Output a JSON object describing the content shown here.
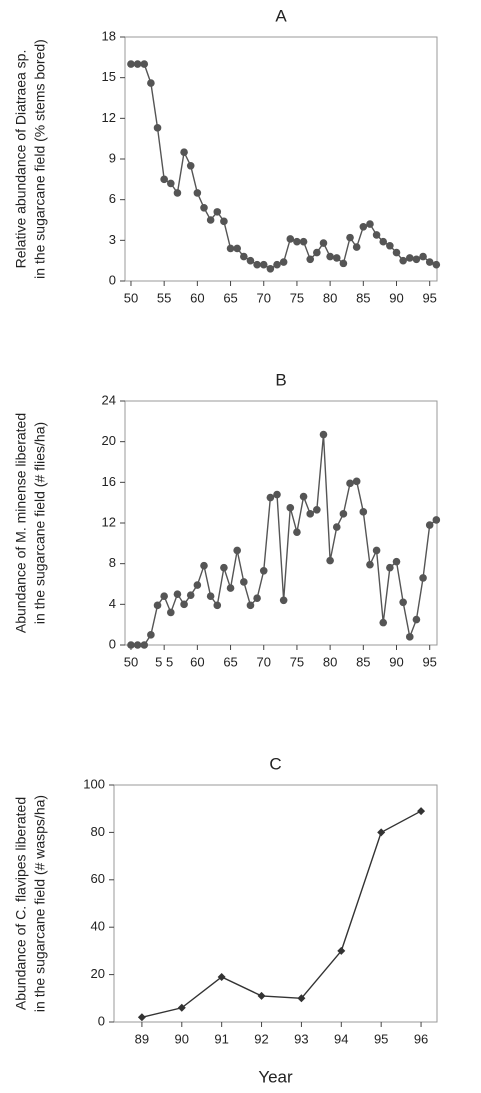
{
  "chart_data": [
    {
      "type": "line",
      "title": "A",
      "ylabel": [
        "Relative abundance of Diatraea sp.",
        "in the sugarcane field (% stems bored)"
      ],
      "x": [
        50,
        51,
        52,
        53,
        54,
        55,
        56,
        57,
        58,
        59,
        60,
        61,
        62,
        63,
        64,
        65,
        66,
        67,
        68,
        69,
        70,
        71,
        72,
        73,
        74,
        75,
        76,
        77,
        78,
        79,
        80,
        81,
        82,
        83,
        84,
        85,
        86,
        87,
        88,
        89,
        90,
        91,
        92,
        93,
        94,
        95,
        96
      ],
      "values": [
        16,
        16,
        16,
        14.6,
        11.3,
        7.5,
        7.2,
        6.5,
        9.5,
        8.5,
        6.5,
        5.4,
        4.5,
        5.1,
        4.4,
        2.4,
        2.4,
        1.8,
        1.5,
        1.2,
        1.2,
        0.9,
        1.2,
        1.4,
        3.1,
        2.9,
        2.9,
        1.6,
        2.1,
        2.8,
        1.8,
        1.7,
        1.3,
        3.2,
        2.5,
        4.0,
        4.2,
        3.4,
        2.9,
        2.6,
        2.1,
        1.5,
        1.7,
        1.6,
        1.8,
        1.4,
        1.2
      ],
      "color": "#555555",
      "marker": "circle",
      "xlim": [
        49.1,
        96.1
      ],
      "xticks": [
        50,
        55,
        60,
        65,
        70,
        75,
        80,
        85,
        90,
        95
      ],
      "ylim": [
        0,
        18
      ],
      "yticks": [
        0,
        3,
        6,
        9,
        12,
        15,
        18
      ]
    },
    {
      "type": "line",
      "title": "B",
      "ylabel": [
        "Abundance of M. minense liberated",
        "in the sugarcane field (# flies/ha)"
      ],
      "x": [
        50,
        51,
        52,
        53,
        54,
        55,
        56,
        57,
        58,
        59,
        60,
        61,
        62,
        63,
        64,
        65,
        66,
        67,
        68,
        69,
        70,
        71,
        72,
        73,
        74,
        75,
        76,
        77,
        78,
        79,
        80,
        81,
        82,
        83,
        84,
        85,
        86,
        87,
        88,
        89,
        90,
        91,
        92,
        93,
        94,
        95,
        96
      ],
      "values": [
        0,
        0,
        0,
        1,
        3.9,
        4.8,
        3.2,
        5.0,
        4.0,
        4.9,
        5.9,
        7.8,
        4.8,
        3.9,
        7.6,
        5.6,
        9.3,
        6.2,
        3.9,
        4.6,
        7.3,
        14.5,
        14.8,
        4.4,
        13.5,
        11.1,
        14.6,
        12.9,
        13.3,
        20.7,
        8.3,
        11.6,
        12.9,
        15.9,
        16.1,
        13.1,
        7.9,
        9.3,
        2.2,
        7.6,
        8.2,
        4.2,
        0.8,
        2.5,
        6.6,
        11.8,
        12.3
      ],
      "color": "#555555",
      "marker": "circle",
      "xlim": [
        49.1,
        96.1
      ],
      "xticks": [
        50,
        {
          "value": 55,
          "label": "5 5"
        },
        60,
        65,
        70,
        75,
        80,
        85,
        90,
        95
      ],
      "ylim": [
        0,
        24
      ],
      "yticks": [
        0,
        4,
        8,
        12,
        16,
        20,
        24
      ]
    },
    {
      "type": "line",
      "title": "C",
      "xlabel": "Year",
      "ylabel": [
        "Abundance of C. flavipes liberated",
        "in the sugarcane field (# wasps/ha)"
      ],
      "x": [
        89,
        90,
        91,
        92,
        93,
        94,
        95,
        96
      ],
      "values": [
        2,
        6,
        19,
        11,
        10,
        30,
        80,
        89
      ],
      "color": "#333333",
      "marker": "diamond",
      "xlim": [
        88.3,
        96.4
      ],
      "xticks": [
        89,
        90,
        91,
        92,
        93,
        94,
        95,
        96
      ],
      "ylim": [
        0,
        100
      ],
      "yticks": [
        0,
        20,
        40,
        60,
        80,
        100
      ]
    }
  ]
}
